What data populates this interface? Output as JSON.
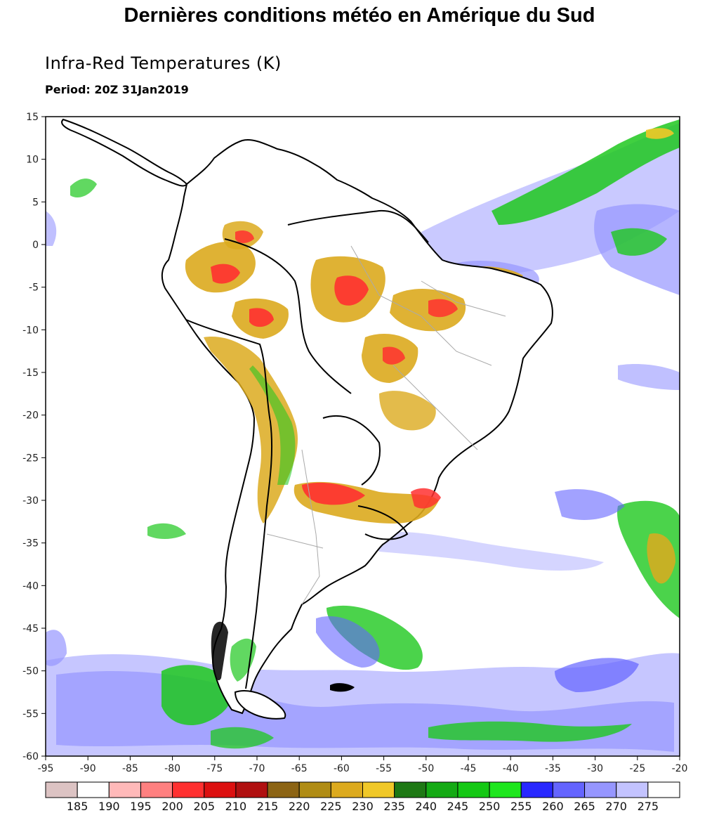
{
  "page": {
    "title": "Dernières conditions météo en Amérique du Sud"
  },
  "map": {
    "title": "Infra-Red Temperatures (K)",
    "period": "Period: 20Z 31Jan2019",
    "lon_range": [
      -95,
      -20
    ],
    "lat_range": [
      -60,
      15
    ],
    "x_ticks": [
      "-95",
      "-90",
      "-85",
      "-80",
      "-75",
      "-70",
      "-65",
      "-60",
      "-55",
      "-50",
      "-45",
      "-40",
      "-35",
      "-30",
      "-25",
      "-20"
    ],
    "y_ticks": [
      "15",
      "10",
      "5",
      "0",
      "-5",
      "-10",
      "-15",
      "-20",
      "-25",
      "-30",
      "-35",
      "-40",
      "-45",
      "-50",
      "-55",
      "-60"
    ]
  },
  "colorbar": {
    "colors": [
      "#dcc3c3",
      "#ffffff",
      "#ffb9b9",
      "#ff8080",
      "#ff3030",
      "#dc1010",
      "#b01010",
      "#8c6414",
      "#b08c14",
      "#dcaa1e",
      "#f0c828",
      "#1e7814",
      "#14aa14",
      "#14c814",
      "#1ee61e",
      "#2828ff",
      "#6464ff",
      "#9696ff",
      "#c3c3ff",
      "#ffffff"
    ],
    "labels": [
      "185",
      "190",
      "195",
      "200",
      "205",
      "210",
      "215",
      "220",
      "225",
      "230",
      "235",
      "240",
      "245",
      "250",
      "255",
      "260",
      "265",
      "270",
      "275"
    ]
  }
}
